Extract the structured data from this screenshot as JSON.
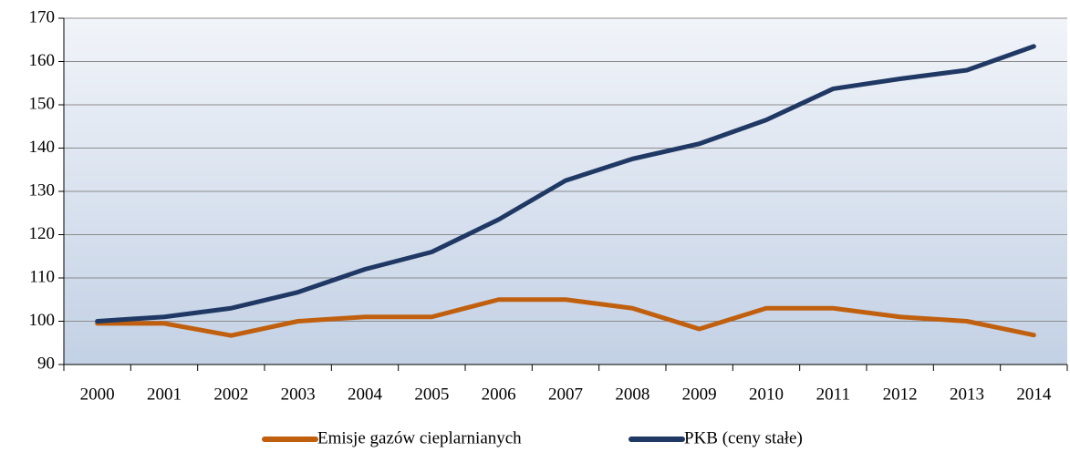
{
  "chart_data": {
    "type": "line",
    "categories": [
      "2000",
      "2001",
      "2002",
      "2003",
      "2004",
      "2005",
      "2006",
      "2007",
      "2008",
      "2009",
      "2010",
      "2011",
      "2012",
      "2013",
      "2014"
    ],
    "series": [
      {
        "name": "Emisje gazów cieplarnianych",
        "color": "#c0600f",
        "values": [
          99.5,
          99.5,
          96.7,
          100,
          101,
          101,
          105,
          105,
          103,
          98.2,
          103,
          103,
          101,
          100,
          96.8
        ]
      },
      {
        "name": "PKB (ceny stałe)",
        "color": "#1f3864",
        "values": [
          100,
          101,
          103,
          106.7,
          112,
          116,
          123.5,
          132.5,
          137.5,
          141,
          146.5,
          153.7,
          156,
          158,
          163.5
        ]
      }
    ],
    "ylim": [
      90,
      170
    ],
    "yticks": [
      90,
      100,
      110,
      120,
      130,
      140,
      150,
      160,
      170
    ],
    "grid": true,
    "legend": "bottom"
  }
}
